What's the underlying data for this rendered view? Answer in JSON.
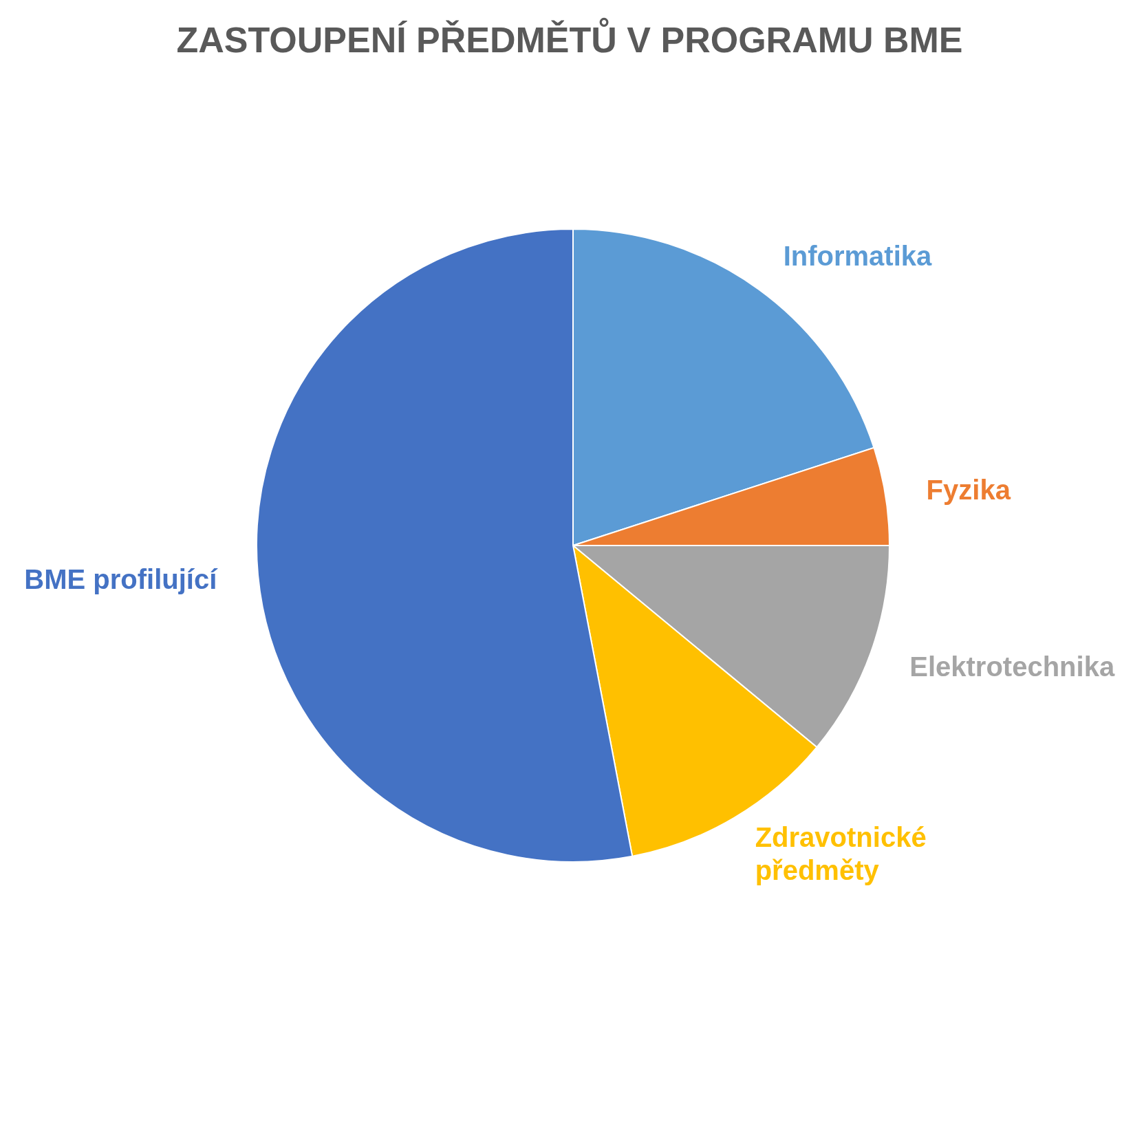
{
  "chart_data": {
    "type": "pie",
    "title": "ZASTOUPENÍ PŘEDMĚTŮ V PROGRAMU BME",
    "categories": [
      "Informatika",
      "Fyzika",
      "Elektrotechnika",
      "Zdravotnické předměty",
      "BME profilující"
    ],
    "values": [
      20,
      5,
      11,
      11,
      53
    ],
    "colors": [
      "#5b9bd5",
      "#ed7d31",
      "#a5a5a5",
      "#ffc000",
      "#4472c4"
    ],
    "legend": false
  }
}
